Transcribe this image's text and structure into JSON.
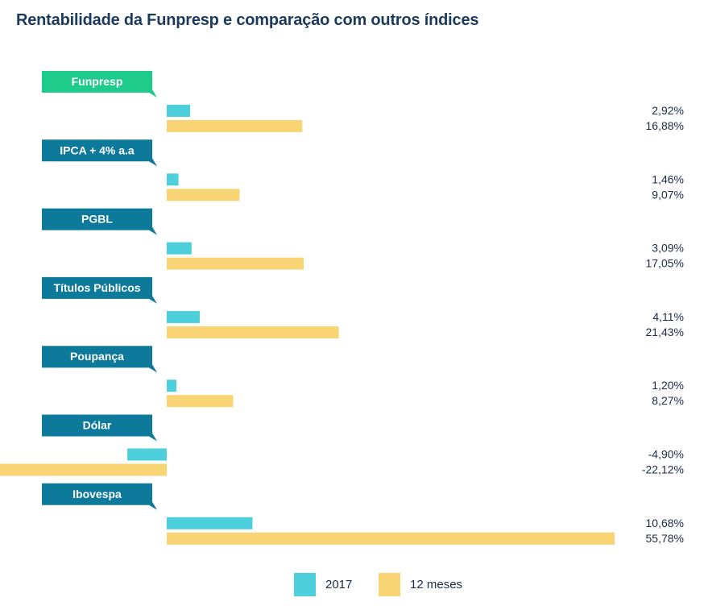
{
  "title": "Rentabilidade da Funpresp e comparação com outros índices",
  "chart_data": {
    "type": "bar",
    "orientation": "horizontal",
    "categories": [
      "Funpresp",
      "IPCA + 4% a.a",
      "PGBL",
      "Títulos Públicos",
      "Poupança",
      "Dólar",
      "Ibovespa"
    ],
    "series": [
      {
        "name": "2017",
        "color": "#4ecfdc",
        "values": [
          2.92,
          1.46,
          3.09,
          4.11,
          1.2,
          -4.9,
          10.68
        ],
        "labels": [
          "2,92%",
          "1,46%",
          "3,09%",
          "4,11%",
          "1,20%",
          "-4,90%",
          "10,68%"
        ]
      },
      {
        "name": "12 meses",
        "color": "#f9d474",
        "values": [
          16.88,
          9.07,
          17.05,
          21.43,
          8.27,
          -22.12,
          55.78
        ],
        "labels": [
          "16,88%",
          "9,07%",
          "17,05%",
          "21,43%",
          "8,27%",
          "-22,12%",
          "55,78%"
        ]
      }
    ],
    "category_colors": [
      "#1fcb8b",
      "#0d7a9c",
      "#0d7a9c",
      "#0d7a9c",
      "#0d7a9c",
      "#0d7a9c",
      "#0d7a9c"
    ],
    "legend_position": "bottom",
    "grid": false
  }
}
